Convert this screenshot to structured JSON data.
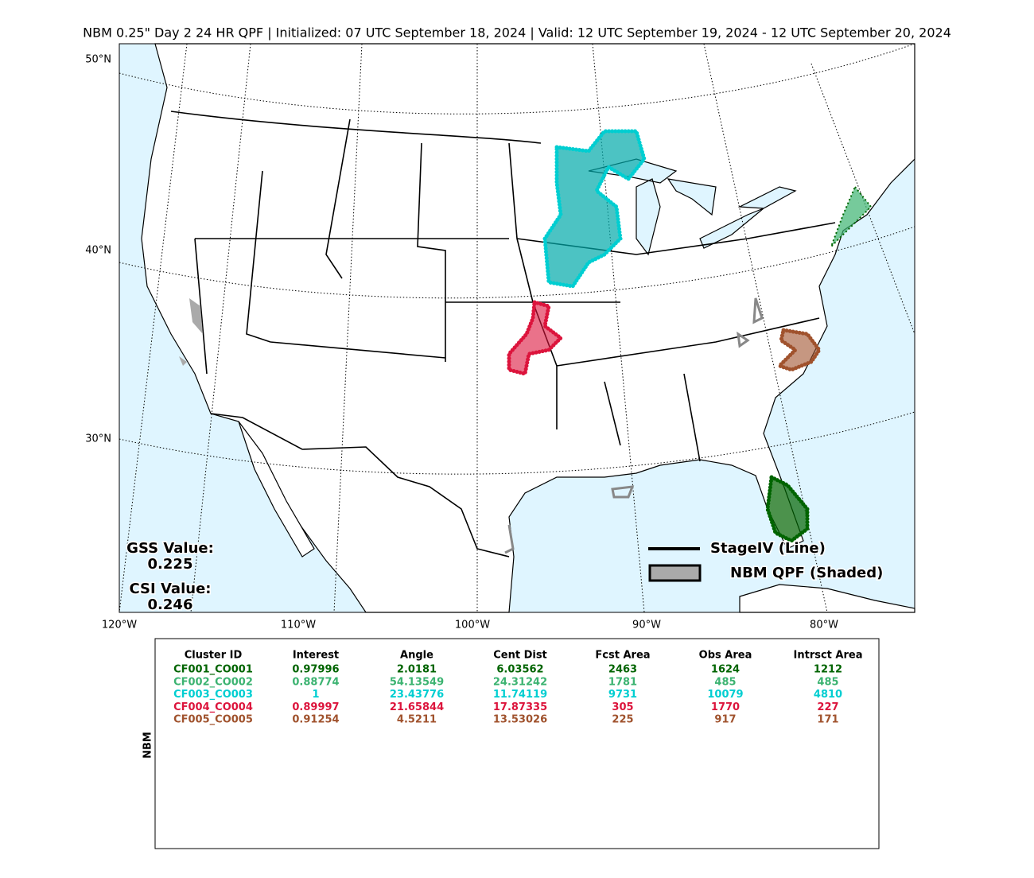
{
  "title": "NBM 0.25\" Day 2 24 HR QPF | Initialized: 07 UTC September 18, 2024 | Valid: 12 UTC September 19, 2024 - 12 UTC September 20, 2024",
  "map": {
    "lat_labels": [
      "50°N",
      "40°N",
      "30°N"
    ],
    "lon_labels": [
      "120°W",
      "110°W",
      "100°W",
      "90°W",
      "80°W"
    ]
  },
  "scores": {
    "gss_label": "GSS Value:",
    "gss_value": 0.225,
    "csi_label": "CSI Value:",
    "csi_value": 0.246
  },
  "legend": {
    "line": "StageIV (Line)",
    "shaded": "NBM QPF (Shaded)"
  },
  "table": {
    "side_label": "NBM",
    "columns": [
      "Cluster ID",
      "Interest",
      "Angle",
      "Cent Dist",
      "Fcst Area",
      "Obs Area",
      "Intrsct Area"
    ],
    "rows": [
      {
        "color": "#006400",
        "cells": [
          "CF001_CO001",
          0.97996,
          2.0181,
          6.03562,
          2463,
          1624,
          1212
        ]
      },
      {
        "color": "#3cb371",
        "cells": [
          "CF002_CO002",
          0.88774,
          54.13549,
          24.31242,
          1781,
          485,
          485
        ]
      },
      {
        "color": "#00ced1",
        "cells": [
          "CF003_CO003",
          1,
          23.43776,
          11.74119,
          9731,
          10079,
          4810
        ]
      },
      {
        "color": "#dc143c",
        "cells": [
          "CF004_CO004",
          0.89997,
          21.65844,
          17.87335,
          305,
          1770,
          227
        ]
      },
      {
        "color": "#a0522d",
        "cells": [
          "CF005_CO005",
          0.91254,
          4.5211,
          13.53026,
          225,
          917,
          171
        ]
      }
    ]
  }
}
